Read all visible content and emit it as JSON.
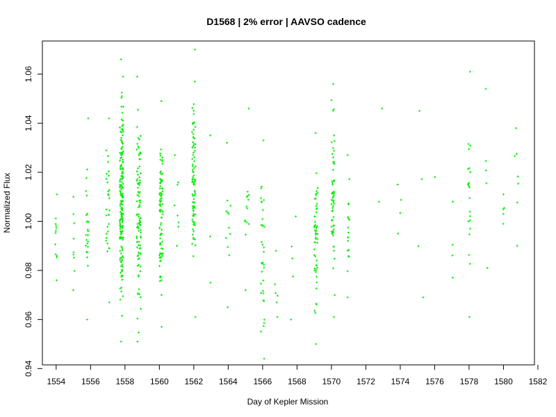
{
  "chart_data": {
    "type": "scatter",
    "title": "D1568 | 2% error | AAVSO cadence",
    "xlabel": "Day of Kepler Mission",
    "ylabel": "Normalized Flux",
    "xlim": [
      1553.2,
      1581.8
    ],
    "ylim": [
      0.9415,
      1.0735
    ],
    "x_ticks": [
      "1554",
      "1556",
      "1558",
      "1560",
      "1562",
      "1564",
      "1566",
      "1568",
      "1570",
      "1572",
      "1574",
      "1576",
      "1578",
      "1580",
      "1582"
    ],
    "y_ticks": [
      "0.94",
      "0.96",
      "0.98",
      "1.00",
      "1.02",
      "1.04",
      "1.06"
    ],
    "grid": false,
    "marker_color": "#00ee00",
    "clusters": [
      {
        "x": 1554.0,
        "width": 0.1,
        "n": 12,
        "ymin": 0.976,
        "ymax": 1.011
      },
      {
        "x": 1555.0,
        "width": 0.15,
        "n": 9,
        "ymin": 0.972,
        "ymax": 1.01
      },
      {
        "x": 1555.8,
        "width": 0.15,
        "n": 24,
        "ymin": 0.96,
        "ymax": 1.042
      },
      {
        "x": 1557.0,
        "width": 0.2,
        "n": 30,
        "ymin": 0.967,
        "ymax": 1.042
      },
      {
        "x": 1557.8,
        "width": 0.2,
        "n": 180,
        "ymin": 0.951,
        "ymax": 1.066
      },
      {
        "x": 1558.8,
        "width": 0.25,
        "n": 100,
        "ymin": 0.951,
        "ymax": 1.059
      },
      {
        "x": 1560.1,
        "width": 0.2,
        "n": 90,
        "ymin": 0.957,
        "ymax": 1.049
      },
      {
        "x": 1561.0,
        "width": 0.25,
        "n": 8,
        "ymin": 0.99,
        "ymax": 1.027
      },
      {
        "x": 1562.0,
        "width": 0.2,
        "n": 90,
        "ymin": 0.961,
        "ymax": 1.07
      },
      {
        "x": 1563.0,
        "width": 0.1,
        "n": 3,
        "ymin": 0.975,
        "ymax": 1.035
      },
      {
        "x": 1564.0,
        "width": 0.3,
        "n": 12,
        "ymin": 0.965,
        "ymax": 1.032
      },
      {
        "x": 1565.1,
        "width": 0.25,
        "n": 14,
        "ymin": 0.972,
        "ymax": 1.046
      },
      {
        "x": 1566.0,
        "width": 0.2,
        "n": 35,
        "ymin": 0.944,
        "ymax": 1.033
      },
      {
        "x": 1566.8,
        "width": 0.2,
        "n": 6,
        "ymin": 0.961,
        "ymax": 0.988
      },
      {
        "x": 1567.8,
        "width": 0.3,
        "n": 5,
        "ymin": 0.96,
        "ymax": 1.002
      },
      {
        "x": 1569.1,
        "width": 0.2,
        "n": 55,
        "ymin": 0.95,
        "ymax": 1.036
      },
      {
        "x": 1570.1,
        "width": 0.2,
        "n": 60,
        "ymin": 0.961,
        "ymax": 1.056
      },
      {
        "x": 1571.0,
        "width": 0.15,
        "n": 18,
        "ymin": 0.969,
        "ymax": 1.027
      },
      {
        "x": 1572.8,
        "width": 0.3,
        "n": 2,
        "ymin": 1.008,
        "ymax": 1.046
      },
      {
        "x": 1574.0,
        "width": 0.3,
        "n": 4,
        "ymin": 0.995,
        "ymax": 1.015
      },
      {
        "x": 1575.2,
        "width": 0.3,
        "n": 4,
        "ymin": 0.969,
        "ymax": 1.045
      },
      {
        "x": 1576.0,
        "width": 0.1,
        "n": 1,
        "ymin": 1.018,
        "ymax": 1.018
      },
      {
        "x": 1577.0,
        "width": 0.2,
        "n": 4,
        "ymin": 0.977,
        "ymax": 1.008
      },
      {
        "x": 1578.0,
        "width": 0.15,
        "n": 22,
        "ymin": 0.961,
        "ymax": 1.061
      },
      {
        "x": 1579.0,
        "width": 0.15,
        "n": 5,
        "ymin": 0.981,
        "ymax": 1.054
      },
      {
        "x": 1580.0,
        "width": 0.1,
        "n": 5,
        "ymin": 0.999,
        "ymax": 1.011
      },
      {
        "x": 1580.8,
        "width": 0.3,
        "n": 7,
        "ymin": 0.99,
        "ymax": 1.038
      }
    ]
  }
}
